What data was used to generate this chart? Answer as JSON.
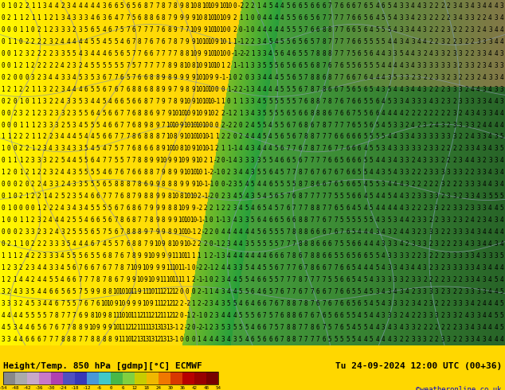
{
  "title_left": "Height/Temp. 850 hPa [gdmp][°C] ECMWF",
  "title_right": "Tu 24-09-2024 12:00 UTC (00+36)",
  "credit": "©weatheronline.co.uk",
  "colorbar_levels": [
    -54,
    -48,
    -42,
    -36,
    -30,
    -24,
    -18,
    -12,
    -6,
    0,
    6,
    12,
    18,
    24,
    30,
    36,
    42,
    48,
    54
  ],
  "colorbar_colors": [
    "#888888",
    "#aaaaaa",
    "#c8a8c8",
    "#c878c8",
    "#b040b0",
    "#5050c0",
    "#3838b8",
    "#4898d8",
    "#40c8c8",
    "#48b848",
    "#80d040",
    "#c8cc00",
    "#f0b800",
    "#f07800",
    "#d83800",
    "#b80000",
    "#980000",
    "#780000"
  ],
  "fig_width": 6.34,
  "fig_height": 4.9,
  "dpi": 100,
  "footer_bg": "#ffd700",
  "map_rows": 29,
  "map_cols": 90,
  "number_fontsize": 5.5,
  "number_color_warm": "#000000",
  "number_color_cool": "#000000",
  "contour_color_warm": "#8888aa",
  "contour_color_cool": "#8899aa",
  "warm_bg": "#ffff00",
  "cool_bg_light": "#88cc44",
  "cool_bg_dark": "#226622"
}
